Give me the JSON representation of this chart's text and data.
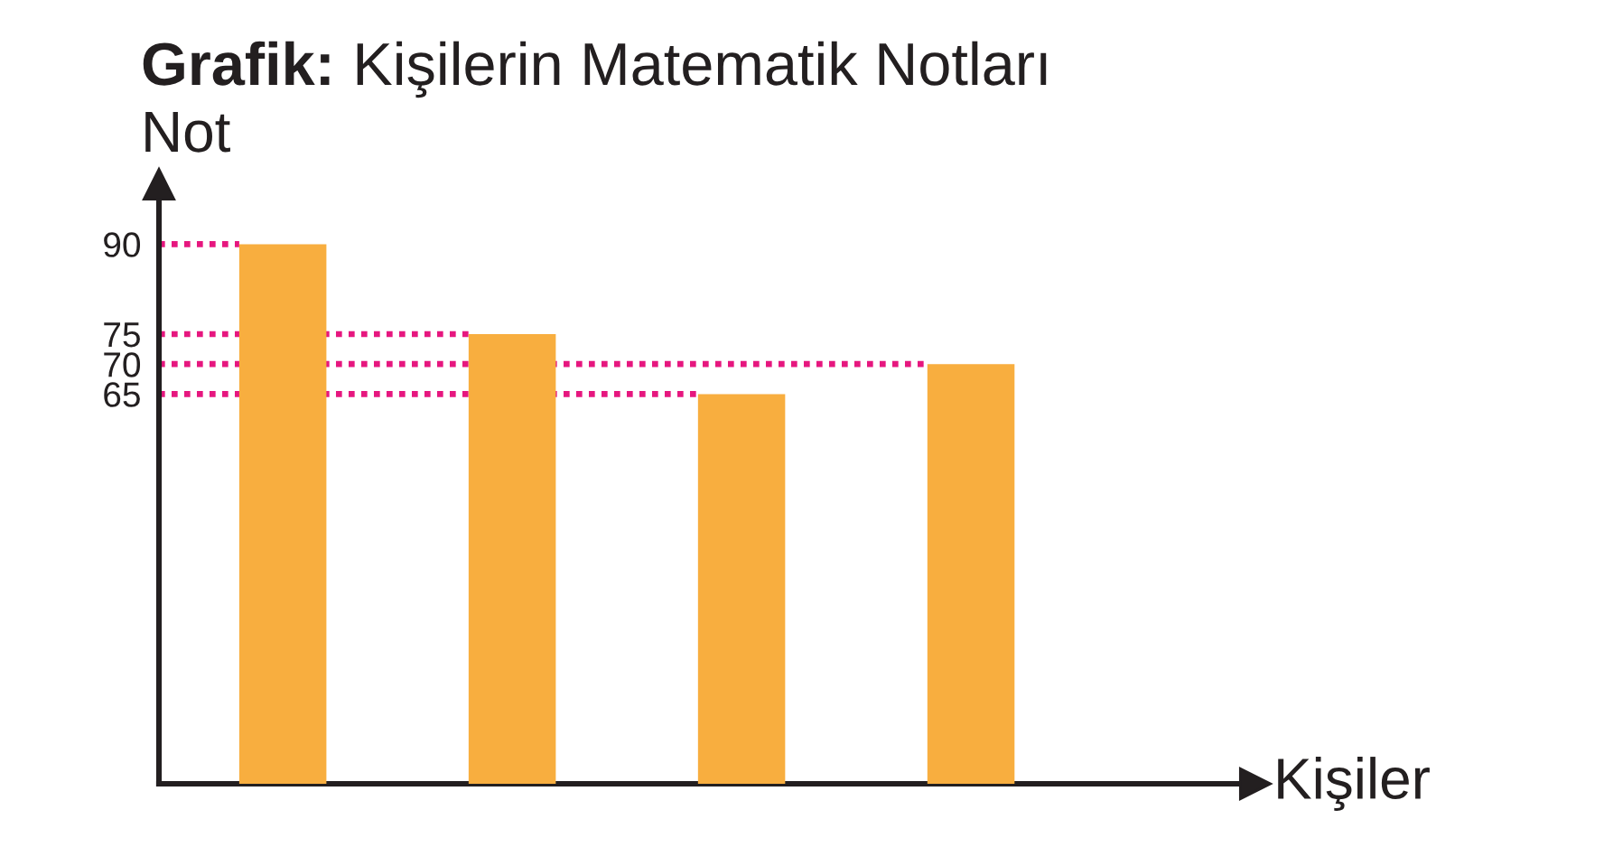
{
  "chart_data": {
    "type": "bar",
    "title": "Grafik: Kişilerin Matematik Notları",
    "xlabel": "Kişiler",
    "ylabel": "Not",
    "categories": [
      null,
      null,
      null,
      null
    ],
    "values": [
      90,
      75,
      65,
      70
    ],
    "color": "#f8ae3f",
    "ylim": [
      0,
      100
    ],
    "yticks": [
      65,
      70,
      75,
      90
    ],
    "tick_labels": "y",
    "ref_lines": [
      {
        "axis": "y",
        "value": 90,
        "color": "#e6177f",
        "line_style": "dotted"
      },
      {
        "axis": "y",
        "value": 75,
        "color": "#e6177f",
        "line_style": "dotted"
      },
      {
        "axis": "y",
        "value": 70,
        "color": "#e6177f",
        "line_style": "dotted"
      },
      {
        "axis": "y",
        "value": 65,
        "color": "#e6177f",
        "line_style": "dotted"
      }
    ]
  }
}
